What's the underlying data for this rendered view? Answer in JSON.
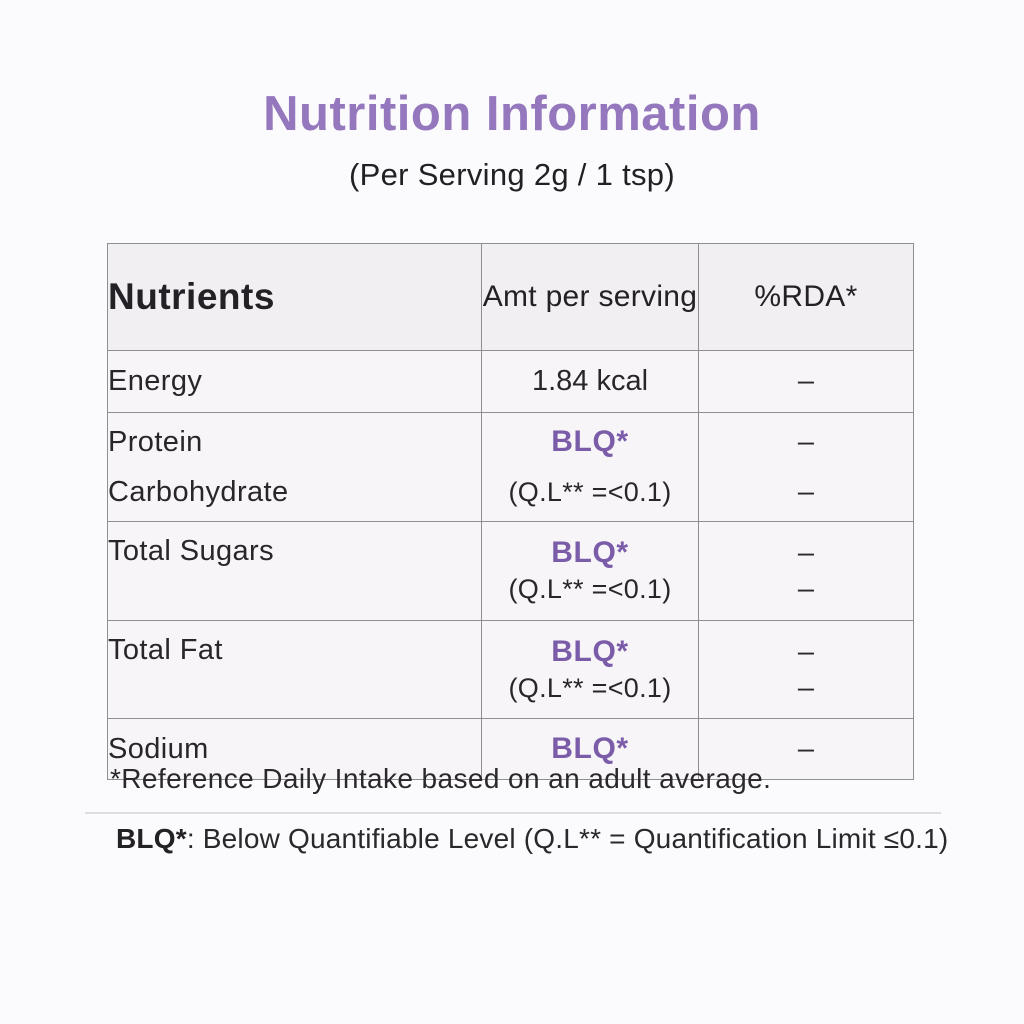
{
  "page": {
    "title": "Nutrition Information",
    "subtitle": "(Per Serving 2g / 1 tsp)"
  },
  "table": {
    "headers": [
      "Nutrients",
      "Amt per serving",
      "%RDA*"
    ],
    "rows": [
      {
        "nutrient": "Energy",
        "amount": "1.84 kcal",
        "rda": "–"
      },
      {
        "nutrients": [
          "Protein",
          "Carbohydrate"
        ],
        "amount": "BLQ*",
        "amount_note": "(Q.L** =<0.1)",
        "rda": [
          "–",
          "–"
        ]
      },
      {
        "nutrient": "Total Sugars",
        "amount": "BLQ*",
        "amount_note": "(Q.L** =<0.1)",
        "rda": [
          "–",
          "–"
        ]
      },
      {
        "nutrient": "Total Fat",
        "amount": "BLQ*",
        "amount_note": "(Q.L** =<0.1)",
        "rda": [
          "–",
          "–"
        ]
      },
      {
        "nutrient": "Sodium",
        "amount": "BLQ*",
        "rda": "–"
      }
    ]
  },
  "footnotes": {
    "rda": "*Reference Daily Intake based on an adult average.",
    "blq_label": "BLQ*",
    "blq_text": ": Below Quantifiable Level (Q.L** = Quantification Limit ≤0.1)"
  },
  "colors": {
    "accent_purple": "#9477bd",
    "blq_purple": "#7a5ca8",
    "text": "#28262b",
    "table_border": "#8e8e93",
    "header_bg": "#f1eff2",
    "cell_bg": "#f7f5f8",
    "page_bg": "#fbfafc"
  }
}
